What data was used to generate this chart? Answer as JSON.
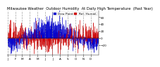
{
  "title": "Milwaukee Weather  Outdoor Humidity  At Daily High Temperature  (Past Year)",
  "legend_blue": "Dew Point",
  "legend_red": "Rel. Humid.",
  "plot_bg": "#ffffff",
  "n_days": 365,
  "seed": 42,
  "ylim": [
    -50,
    80
  ],
  "yticks": [
    -20,
    0,
    20,
    40,
    60
  ],
  "grid_color": "#888888",
  "blue_color": "#0000cc",
  "red_color": "#cc0000",
  "title_fontsize": 3.8,
  "tick_fontsize": 3.0,
  "legend_fontsize": 3.2
}
